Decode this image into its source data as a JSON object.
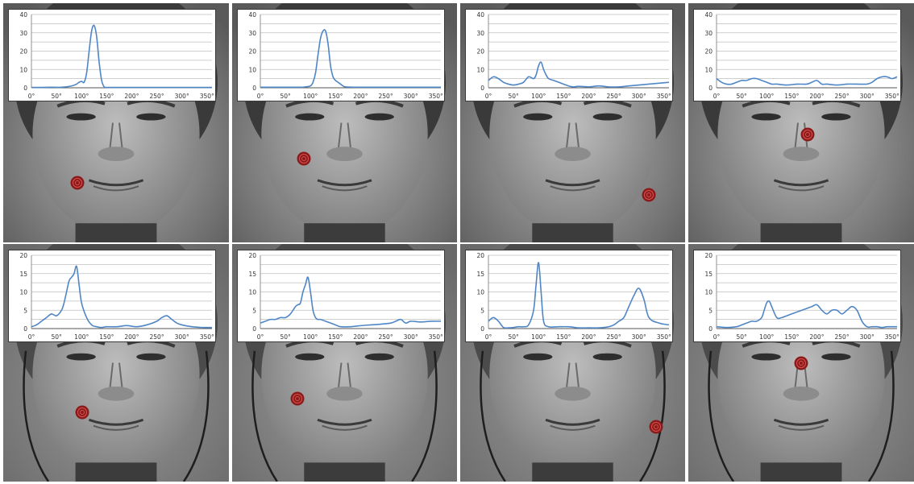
{
  "colors": {
    "line": "#4f86c6",
    "grid": "#bfbfbf",
    "marker_outer": "#8b1a1a",
    "marker_ring": "#d9534f"
  },
  "chart_data": [
    {
      "type": "line",
      "row": 0,
      "col": 0,
      "xlim": [
        0,
        360
      ],
      "ylim": [
        0,
        40
      ],
      "xticks": [
        "0°",
        "50°",
        "100°",
        "150°",
        "200°",
        "250°",
        "300°",
        "350°"
      ],
      "yticks": [
        "0",
        "10",
        "20",
        "30",
        "40"
      ],
      "x": [
        0,
        20,
        40,
        60,
        80,
        90,
        95,
        100,
        105,
        110,
        115,
        120,
        125,
        130,
        135,
        140,
        145,
        150,
        160,
        200,
        250,
        300,
        360
      ],
      "y": [
        0.2,
        0.2,
        0.3,
        0.3,
        1,
        2,
        3,
        3.5,
        3,
        8,
        20,
        31,
        34,
        28,
        14,
        4,
        0.5,
        0.2,
        0.2,
        0.2,
        0.2,
        0.2,
        0.2
      ]
    },
    {
      "type": "line",
      "row": 0,
      "col": 1,
      "xlim": [
        0,
        360
      ],
      "ylim": [
        0,
        40
      ],
      "xticks": [
        "0°",
        "50°",
        "100°",
        "150°",
        "200°",
        "250°",
        "300°",
        "350°"
      ],
      "yticks": [
        "0",
        "10",
        "20",
        "30",
        "40"
      ],
      "x": [
        0,
        50,
        80,
        90,
        100,
        105,
        110,
        115,
        120,
        125,
        130,
        135,
        140,
        145,
        150,
        155,
        160,
        165,
        170,
        200,
        250,
        300,
        360
      ],
      "y": [
        0.3,
        0.3,
        0.3,
        0.5,
        1,
        3,
        8,
        18,
        27,
        31,
        31,
        24,
        12,
        6,
        4,
        3,
        2,
        1,
        0.5,
        0.3,
        0.3,
        0.3,
        0.3
      ]
    },
    {
      "type": "line",
      "row": 0,
      "col": 2,
      "xlim": [
        0,
        360
      ],
      "ylim": [
        0,
        40
      ],
      "xticks": [
        "0°",
        "50°",
        "100°",
        "150°",
        "200°",
        "250°",
        "300°",
        "350°"
      ],
      "yticks": [
        "0",
        "10",
        "20",
        "30",
        "40"
      ],
      "x": [
        0,
        10,
        20,
        30,
        40,
        50,
        60,
        70,
        80,
        90,
        95,
        100,
        105,
        110,
        115,
        120,
        130,
        140,
        150,
        160,
        170,
        180,
        200,
        220,
        240,
        260,
        280,
        300,
        320,
        340,
        360
      ],
      "y": [
        4,
        6,
        5,
        3,
        2,
        1.5,
        2,
        3,
        6,
        5,
        7,
        12,
        14,
        10,
        7,
        5,
        4,
        3,
        2,
        1,
        0.5,
        0.8,
        0.5,
        1,
        0.5,
        0.5,
        1,
        1.5,
        2,
        2.5,
        3
      ]
    },
    {
      "type": "line",
      "row": 0,
      "col": 3,
      "xlim": [
        0,
        360
      ],
      "ylim": [
        0,
        40
      ],
      "xticks": [
        "0°",
        "50°",
        "100°",
        "150°",
        "200°",
        "250°",
        "300°",
        "350°"
      ],
      "yticks": [
        "0",
        "10",
        "20",
        "30",
        "40"
      ],
      "x": [
        0,
        10,
        20,
        30,
        40,
        50,
        60,
        70,
        80,
        90,
        100,
        110,
        120,
        140,
        160,
        180,
        190,
        200,
        210,
        220,
        240,
        260,
        280,
        300,
        310,
        320,
        330,
        340,
        350,
        360
      ],
      "y": [
        5,
        3,
        2,
        2,
        3,
        4,
        4,
        5,
        5,
        4,
        3,
        2,
        2,
        1.5,
        2,
        2,
        3,
        4,
        2,
        2,
        1.5,
        2,
        2,
        2,
        3,
        5,
        6,
        6,
        5,
        6
      ]
    },
    {
      "type": "line",
      "row": 1,
      "col": 0,
      "xlim": [
        0,
        360
      ],
      "ylim": [
        0,
        20
      ],
      "xticks": [
        "0°",
        "50°",
        "100°",
        "150°",
        "200°",
        "250°",
        "300°",
        "350°"
      ],
      "yticks": [
        "0",
        "5",
        "10",
        "15",
        "20"
      ],
      "x": [
        0,
        10,
        20,
        30,
        40,
        50,
        60,
        65,
        70,
        75,
        80,
        85,
        90,
        95,
        100,
        110,
        120,
        130,
        140,
        150,
        170,
        190,
        210,
        230,
        250,
        260,
        270,
        280,
        290,
        300,
        320,
        340,
        360
      ],
      "y": [
        0.5,
        1,
        2,
        3,
        4,
        3.5,
        5,
        7,
        10,
        13,
        14,
        15,
        17,
        12,
        7,
        3,
        1,
        0.5,
        0.3,
        0.5,
        0.5,
        0.8,
        0.5,
        1,
        2,
        3,
        3.5,
        2.5,
        1.5,
        1,
        0.5,
        0.3,
        0.3
      ]
    },
    {
      "type": "line",
      "row": 1,
      "col": 1,
      "xlim": [
        0,
        360
      ],
      "ylim": [
        0,
        20
      ],
      "xticks": [
        "0°",
        "50°",
        "100°",
        "150°",
        "200°",
        "250°",
        "300°",
        "350°"
      ],
      "yticks": [
        "0",
        "5",
        "10",
        "15",
        "20"
      ],
      "x": [
        0,
        10,
        20,
        30,
        40,
        50,
        60,
        70,
        75,
        80,
        85,
        90,
        95,
        100,
        105,
        110,
        115,
        120,
        130,
        140,
        150,
        160,
        180,
        200,
        220,
        240,
        260,
        270,
        280,
        290,
        300,
        320,
        340,
        360
      ],
      "y": [
        1.5,
        2,
        2.5,
        2.5,
        3,
        3,
        4,
        6,
        6.5,
        7,
        10,
        12,
        14,
        10,
        5,
        3,
        2.5,
        2.5,
        2,
        1.5,
        1,
        0.5,
        0.5,
        0.8,
        1,
        1.2,
        1.5,
        2,
        2.5,
        1.5,
        2,
        1.8,
        2,
        2
      ]
    },
    {
      "type": "line",
      "row": 1,
      "col": 2,
      "xlim": [
        0,
        360
      ],
      "ylim": [
        0,
        20
      ],
      "xticks": [
        "0°",
        "50°",
        "100°",
        "150°",
        "200°",
        "250°",
        "300°",
        "350°"
      ],
      "yticks": [
        "0",
        "5",
        "10",
        "15",
        "20"
      ],
      "x": [
        0,
        10,
        20,
        30,
        40,
        50,
        60,
        70,
        80,
        90,
        95,
        100,
        105,
        110,
        120,
        140,
        160,
        180,
        200,
        220,
        240,
        250,
        260,
        270,
        280,
        290,
        300,
        310,
        320,
        340,
        360
      ],
      "y": [
        2,
        3,
        2,
        0.3,
        0.2,
        0.3,
        0.5,
        0.5,
        1,
        5,
        12,
        18,
        10,
        2,
        0.5,
        0.5,
        0.5,
        0.2,
        0.2,
        0.2,
        0.5,
        1,
        2,
        3,
        6,
        9,
        11,
        8,
        3,
        1.5,
        1
      ]
    },
    {
      "type": "line",
      "row": 1,
      "col": 3,
      "xlim": [
        0,
        360
      ],
      "ylim": [
        0,
        20
      ],
      "xticks": [
        "0°",
        "50°",
        "100°",
        "150°",
        "200°",
        "250°",
        "300°",
        "350°"
      ],
      "yticks": [
        "0",
        "5",
        "10",
        "15",
        "20"
      ],
      "x": [
        0,
        20,
        40,
        50,
        60,
        70,
        80,
        90,
        95,
        100,
        105,
        110,
        120,
        130,
        140,
        150,
        160,
        170,
        180,
        190,
        200,
        210,
        220,
        230,
        240,
        250,
        260,
        270,
        280,
        290,
        300,
        310,
        320,
        330,
        340,
        350,
        360
      ],
      "y": [
        0.5,
        0.3,
        0.5,
        1,
        1.5,
        2,
        2,
        3,
        5,
        7,
        7.5,
        6,
        3,
        3,
        3.5,
        4,
        4.5,
        5,
        5.5,
        6,
        6.5,
        5,
        4,
        5,
        5,
        4,
        5,
        6,
        5,
        2,
        0.5,
        0.5,
        0.5,
        0.3,
        0.5,
        0.5,
        0.5
      ]
    }
  ],
  "markers": [
    {
      "row": 0,
      "col": 0,
      "fx": 0.33,
      "fy": 0.75
    },
    {
      "row": 0,
      "col": 1,
      "fx": 0.32,
      "fy": 0.65
    },
    {
      "row": 0,
      "col": 2,
      "fx": 0.84,
      "fy": 0.8
    },
    {
      "row": 0,
      "col": 3,
      "fx": 0.53,
      "fy": 0.55
    },
    {
      "row": 1,
      "col": 0,
      "fx": 0.35,
      "fy": 0.71
    },
    {
      "row": 1,
      "col": 1,
      "fx": 0.29,
      "fy": 0.65
    },
    {
      "row": 1,
      "col": 2,
      "fx": 0.87,
      "fy": 0.77
    },
    {
      "row": 1,
      "col": 3,
      "fx": 0.5,
      "fy": 0.5
    }
  ]
}
